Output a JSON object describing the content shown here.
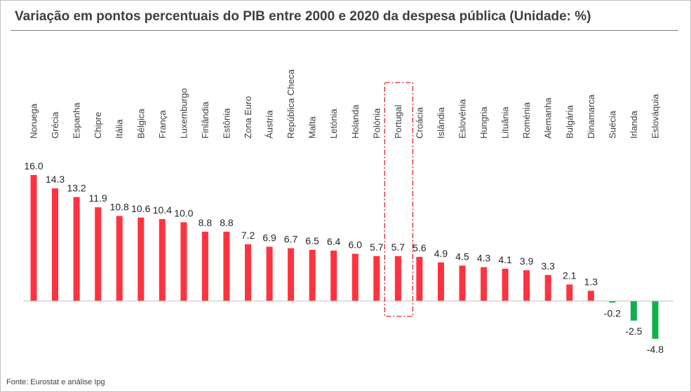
{
  "title": "Variação em pontos percentuais do PIB entre 2000 e 2020 da despesa pública (Unidade: %)",
  "footer": "Fonte: Eurostat e análise Ipg",
  "colors": {
    "positive": "#ff333f",
    "negative": "#11b04b",
    "highlight": "#e0202f",
    "axis": "#bfbfbf",
    "text": "#404040"
  },
  "chart_data": {
    "type": "bar",
    "title": "Variação em pontos percentuais do PIB entre 2000 e 2020 da despesa pública (Unidade: %)",
    "categories": [
      "Noruega",
      "Grécia",
      "Espanha",
      "Chipre",
      "Itália",
      "Bélgica",
      "França",
      "Luxemburgo",
      "Finlândia",
      "Estônia",
      "Zona Euro",
      "Áustria",
      "República Checa",
      "Malta",
      "Letónia",
      "Holanda",
      "Polónia",
      "Portugal",
      "Croácia",
      "Islândia",
      "Eslovénia",
      "Hungria",
      "Lituânia",
      "Roménia",
      "Alemanha",
      "Bulgária",
      "Dinamarca",
      "Suécia",
      "Irlanda",
      "Eslováquia"
    ],
    "values": [
      16.0,
      14.3,
      13.2,
      11.9,
      10.8,
      10.6,
      10.4,
      10.0,
      8.8,
      8.8,
      7.2,
      6.9,
      6.7,
      6.5,
      6.4,
      6.0,
      5.7,
      5.7,
      5.6,
      4.9,
      4.5,
      4.3,
      4.1,
      3.9,
      3.3,
      2.1,
      1.3,
      -0.2,
      -2.5,
      -4.8
    ],
    "value_labels": [
      "16.0",
      "14.3",
      "13.2",
      "11.9",
      "10.8",
      "10.6",
      "10.4",
      "10.0",
      "8.8",
      "8.8",
      "7.2",
      "6.9",
      "6.7",
      "6.5",
      "6.4",
      "6.0",
      "5.7",
      "5.7",
      "5.6",
      "4.9",
      "4.5",
      "4.3",
      "4.1",
      "3.9",
      "3.3",
      "2.1",
      "1.3",
      "-0.2",
      "-2.5",
      "-4.8"
    ],
    "highlighted_category": "Portugal",
    "grid": false,
    "legend": "none",
    "xlabel": "",
    "ylabel": ""
  }
}
